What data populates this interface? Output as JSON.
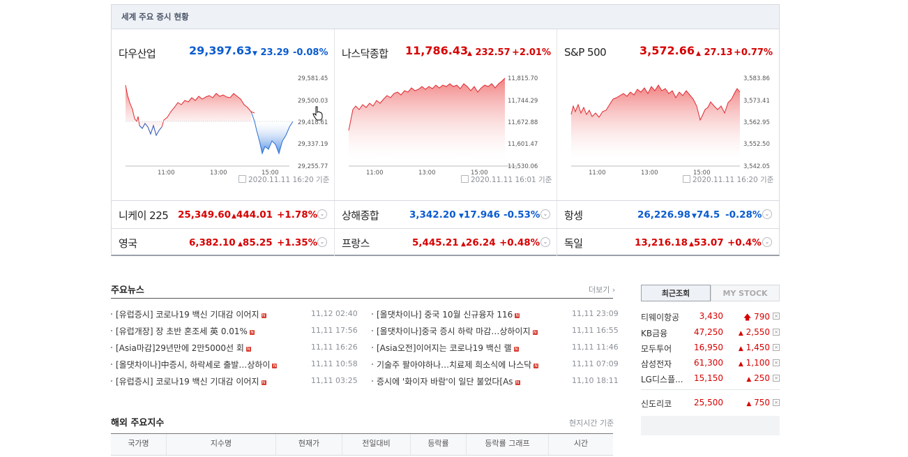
{
  "panel_title": "세계 주요 증시 현황",
  "charts": [
    {
      "name": "다우산업",
      "price": "29,397.63",
      "change": "23.29",
      "rate": "-0.08%",
      "dir": "down",
      "y_ticks": [
        "29,581.45",
        "29,500.03",
        "29,418.61",
        "29,337.19",
        "29,255.77"
      ],
      "x_ticks": [
        "11:00",
        "13:00",
        "15:00"
      ],
      "stamp": "2020.11.11 16:20 기준"
    },
    {
      "name": "나스닥종합",
      "price": "11,786.43",
      "change": "232.57",
      "rate": "+2.01%",
      "dir": "up",
      "y_ticks": [
        "11,815.70",
        "11,744.29",
        "11,672.88",
        "11,601.47",
        "11,530.06"
      ],
      "x_ticks": [
        "11:00",
        "13:00",
        "15:00"
      ],
      "stamp": "2020.11.11 16:01 기준"
    },
    {
      "name": "S&P 500",
      "price": "3,572.66",
      "change": "27.13",
      "rate": "+0.77%",
      "dir": "up",
      "y_ticks": [
        "3,583.86",
        "3,573.41",
        "3,562.95",
        "3,552.50",
        "3,542.05"
      ],
      "x_ticks": [
        "11:00",
        "13:00",
        "15:00"
      ],
      "stamp": "2020.11.11 16:20 기준"
    }
  ],
  "indices": [
    {
      "name": "니케이 225",
      "price": "25,349.60",
      "change": "444.01",
      "rate": "+1.78%",
      "dir": "up"
    },
    {
      "name": "상해종합",
      "price": "3,342.20",
      "change": "17.946",
      "rate": "-0.53%",
      "dir": "down"
    },
    {
      "name": "항셍",
      "price": "26,226.98",
      "change": "74.5",
      "rate": "-0.28%",
      "dir": "down"
    },
    {
      "name": "영국",
      "price": "6,382.10",
      "change": "85.25",
      "rate": "+1.35%",
      "dir": "up"
    },
    {
      "name": "프랑스",
      "price": "5,445.21",
      "change": "26.24",
      "rate": "+0.48%",
      "dir": "up"
    },
    {
      "name": "독일",
      "price": "13,216.18",
      "change": "53.07",
      "rate": "+0.4%",
      "dir": "up"
    }
  ],
  "news": {
    "title": "주요뉴스",
    "more": "더보기",
    "left": [
      {
        "text": "[유럽증시] 코로나19 백신 기대감 이어지",
        "date": "11,12 02:40"
      },
      {
        "text": "[유럽개장] 장 초반 혼조세 英 0.01%",
        "date": "11,11 17:56"
      },
      {
        "text": "[Asia마감]29년만에 2만5000선 회",
        "date": "11,11 16:26"
      },
      {
        "text": "[올댓차이나]中증시, 하락세로 출발…상하이",
        "date": "11,11 10:58"
      },
      {
        "text": "[유럽증시] 코로나19 백신 기대감 이어지",
        "date": "11,11 03:25"
      }
    ],
    "right": [
      {
        "text": "[올댓차이나] 중국 10월 신규융자 116",
        "date": "11,11 23:09"
      },
      {
        "text": "[올댓차이나]중국 증시 하락 마감…상하이지",
        "date": "11,11 16:55"
      },
      {
        "text": "[Asia오전]이어지는 코로나19 백신 랠",
        "date": "11,11 11:46"
      },
      {
        "text": "기술주 팔아야하나…치료제 희소식에 나스닥",
        "date": "11,11 07:09"
      },
      {
        "text": "증시에 '화이자 바람'이 일단 불었다[As",
        "date": "11,10 18:11"
      }
    ]
  },
  "recent": {
    "tab_recent": "최근조회",
    "tab_mystock": "MY STOCK",
    "items": [
      {
        "name": "티웨이항공",
        "price": "3,430",
        "change": "790"
      },
      {
        "name": "KB금융",
        "price": "47,250",
        "change": "2,550"
      },
      {
        "name": "모두투어",
        "price": "16,950",
        "change": "1,450"
      },
      {
        "name": "삼성전자",
        "price": "61,300",
        "change": "1,100"
      },
      {
        "name": "LG디스플...",
        "price": "15,150",
        "change": "250"
      },
      {
        "name": "신도리코",
        "price": "25,500",
        "change": "750"
      }
    ]
  },
  "overseas": {
    "title": "해외 주요지수",
    "time_note": "현지시간 기준",
    "columns": [
      "국가명",
      "지수명",
      "현재가",
      "전일대비",
      "등락률",
      "등락률 그래프",
      "시간"
    ]
  },
  "colors": {
    "up": "#d60000",
    "down": "#0a5bd0",
    "header_bg": "#eef1f6"
  }
}
